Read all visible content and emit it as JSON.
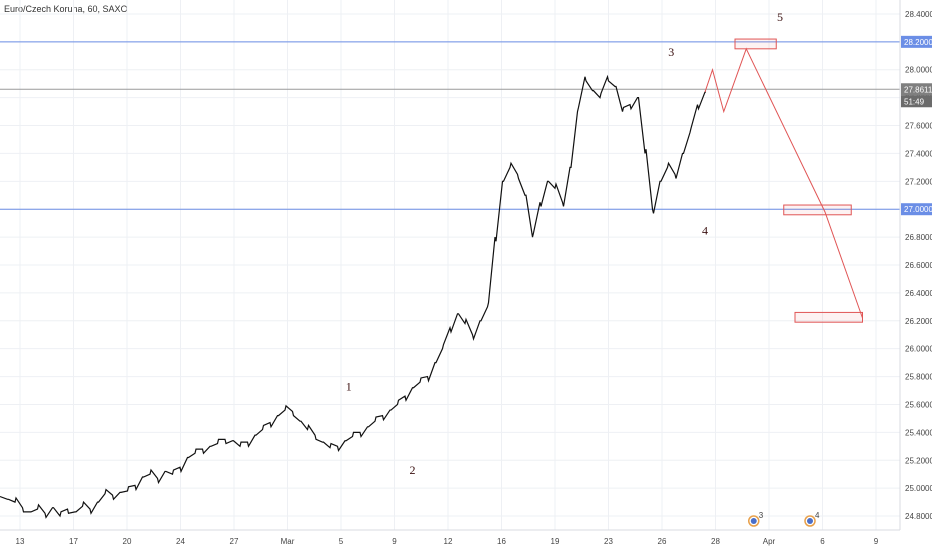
{
  "header": {
    "title": "Euro/Czech Koruna, 60, SAXO"
  },
  "chart_data": {
    "type": "line",
    "title": "Euro/Czech Koruna, 60, SAXO",
    "ylim": [
      24.7,
      28.5
    ],
    "y_ticks": [
      "28.4000",
      "28.2000",
      "28.0000",
      "27.8000",
      "27.6000",
      "27.4000",
      "27.2000",
      "27.0000",
      "26.8000",
      "26.6000",
      "26.4000",
      "26.2000",
      "26.0000",
      "25.8000",
      "25.6000",
      "25.4000",
      "25.2000",
      "25.0000",
      "24.8000"
    ],
    "x_ticks": [
      "13",
      "17",
      "20",
      "24",
      "27",
      "Mar",
      "5",
      "9",
      "12",
      "16",
      "19",
      "23",
      "26",
      "28",
      "Apr",
      "6",
      "9"
    ],
    "series": [
      {
        "values": [
          [
            0,
            24.94
          ],
          [
            2,
            24.92
          ],
          [
            4,
            24.9
          ],
          [
            6,
            24.86
          ],
          [
            8,
            24.83
          ],
          [
            10,
            24.85
          ],
          [
            12,
            24.82
          ],
          [
            14,
            24.86
          ],
          [
            16,
            24.8
          ],
          [
            18,
            24.85
          ],
          [
            20,
            24.83
          ],
          [
            22,
            24.87
          ],
          [
            24,
            24.85
          ],
          [
            26,
            24.9
          ],
          [
            28,
            24.96
          ],
          [
            30,
            24.95
          ],
          [
            32,
            24.97
          ],
          [
            34,
            24.98
          ],
          [
            36,
            25.02
          ],
          [
            38,
            25.08
          ],
          [
            40,
            25.1
          ],
          [
            42,
            25.07
          ],
          [
            44,
            25.12
          ],
          [
            46,
            25.1
          ],
          [
            48,
            25.15
          ],
          [
            50,
            25.22
          ],
          [
            52,
            25.25
          ],
          [
            54,
            25.28
          ],
          [
            56,
            25.3
          ],
          [
            58,
            25.32
          ],
          [
            60,
            25.35
          ],
          [
            62,
            25.34
          ],
          [
            64,
            25.3
          ],
          [
            66,
            25.33
          ],
          [
            68,
            25.38
          ],
          [
            70,
            25.42
          ],
          [
            72,
            25.47
          ],
          [
            74,
            25.52
          ],
          [
            76,
            25.56
          ],
          [
            78,
            25.55
          ],
          [
            80,
            25.48
          ],
          [
            82,
            25.42
          ],
          [
            84,
            25.38
          ],
          [
            86,
            25.33
          ],
          [
            88,
            25.29
          ],
          [
            90,
            25.3
          ],
          [
            92,
            25.34
          ],
          [
            94,
            25.37
          ],
          [
            96,
            25.4
          ],
          [
            98,
            25.44
          ],
          [
            100,
            25.48
          ],
          [
            102,
            25.52
          ],
          [
            104,
            25.56
          ],
          [
            106,
            25.6
          ],
          [
            108,
            25.66
          ],
          [
            110,
            25.72
          ],
          [
            112,
            25.76
          ],
          [
            114,
            25.8
          ],
          [
            116,
            25.9
          ],
          [
            118,
            26.0
          ],
          [
            120,
            26.15
          ],
          [
            122,
            26.25
          ],
          [
            124,
            26.18
          ],
          [
            126,
            26.1
          ],
          [
            128,
            26.2
          ],
          [
            130,
            26.3
          ],
          [
            132,
            26.8
          ],
          [
            134,
            27.2
          ],
          [
            136,
            27.3
          ],
          [
            138,
            27.25
          ],
          [
            140,
            27.1
          ],
          [
            142,
            26.8
          ],
          [
            144,
            27.05
          ],
          [
            146,
            27.2
          ],
          [
            148,
            27.15
          ],
          [
            150,
            27.05
          ],
          [
            152,
            27.3
          ],
          [
            154,
            27.7
          ],
          [
            156,
            27.95
          ],
          [
            158,
            27.85
          ],
          [
            160,
            27.8
          ],
          [
            162,
            27.95
          ],
          [
            164,
            27.88
          ],
          [
            166,
            27.7
          ],
          [
            168,
            27.75
          ],
          [
            170,
            27.8
          ],
          [
            172,
            27.4
          ],
          [
            174,
            27.0
          ],
          [
            176,
            27.2
          ],
          [
            178,
            27.3
          ],
          [
            180,
            27.25
          ],
          [
            182,
            27.4
          ],
          [
            184,
            27.55
          ],
          [
            186,
            27.75
          ],
          [
            188,
            27.84
          ]
        ]
      }
    ],
    "horizontal_levels": [
      {
        "value": 28.2,
        "label": "28.2000",
        "color": "#6b8ee6"
      },
      {
        "value": 27.86,
        "label": "27.8611",
        "color": "#9a9a9a"
      },
      {
        "value": 27.0,
        "label": "27.0000",
        "color": "#6b8ee6"
      }
    ],
    "projection": [
      [
        188,
        27.84
      ],
      [
        190,
        28.0
      ],
      [
        193,
        27.7
      ],
      [
        199,
        28.15
      ],
      [
        220,
        26.98
      ],
      [
        230,
        26.22
      ]
    ],
    "target_boxes": [
      {
        "x1": 196,
        "x2": 207,
        "y1": 28.22,
        "y2": 28.15
      },
      {
        "x1": 209,
        "x2": 227,
        "y1": 27.03,
        "y2": 26.96
      },
      {
        "x1": 212,
        "x2": 230,
        "y1": 26.26,
        "y2": 26.19
      }
    ],
    "wave_labels": [
      {
        "text": "1",
        "x": 93,
        "y": 25.7
      },
      {
        "text": "2",
        "x": 110,
        "y": 25.1
      },
      {
        "text": "3",
        "x": 179,
        "y": 28.1
      },
      {
        "text": "4",
        "x": 188,
        "y": 26.82
      },
      {
        "text": "5",
        "x": 208,
        "y": 28.35
      }
    ],
    "price_badge": "27.8611",
    "countdown_badge": "51:49",
    "event_markers": [
      {
        "x": 201,
        "text": "3"
      },
      {
        "x": 216,
        "text": "4"
      }
    ],
    "colors": {
      "price": "#111111",
      "projection": "#e05555",
      "grid": "#eef0f4"
    }
  }
}
